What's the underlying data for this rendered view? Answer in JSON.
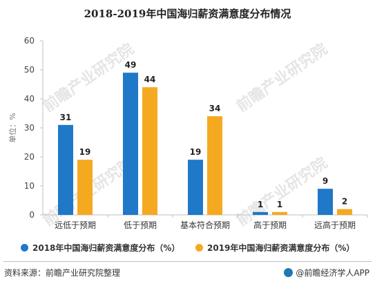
{
  "chart_data": {
    "type": "bar",
    "title": "2018-2019年中国海归薪资满意度分布情况",
    "ylabel": "单位：%",
    "ylim": [
      0,
      60
    ],
    "yticks": [
      0,
      10,
      20,
      30,
      40,
      50,
      60
    ],
    "grid": false,
    "legend_position": "bottom",
    "categories": [
      "远低于预期",
      "低于预期",
      "基本符合预期",
      "高于预期",
      "远高于预期"
    ],
    "series": [
      {
        "name": "2018年中国海归薪资满意度分布（%）",
        "color": "#1f78c8",
        "values": [
          31,
          49,
          19,
          1,
          9
        ]
      },
      {
        "name": "2019年中国海归薪资满意度分布（%）",
        "color": "#f5a920",
        "values": [
          19,
          44,
          34,
          1,
          2
        ]
      }
    ]
  },
  "footer": {
    "source": "资料来源：前瞻产业研究院整理",
    "brand": "@前瞻经济学人APP"
  },
  "watermark": "前瞻产业研究院"
}
